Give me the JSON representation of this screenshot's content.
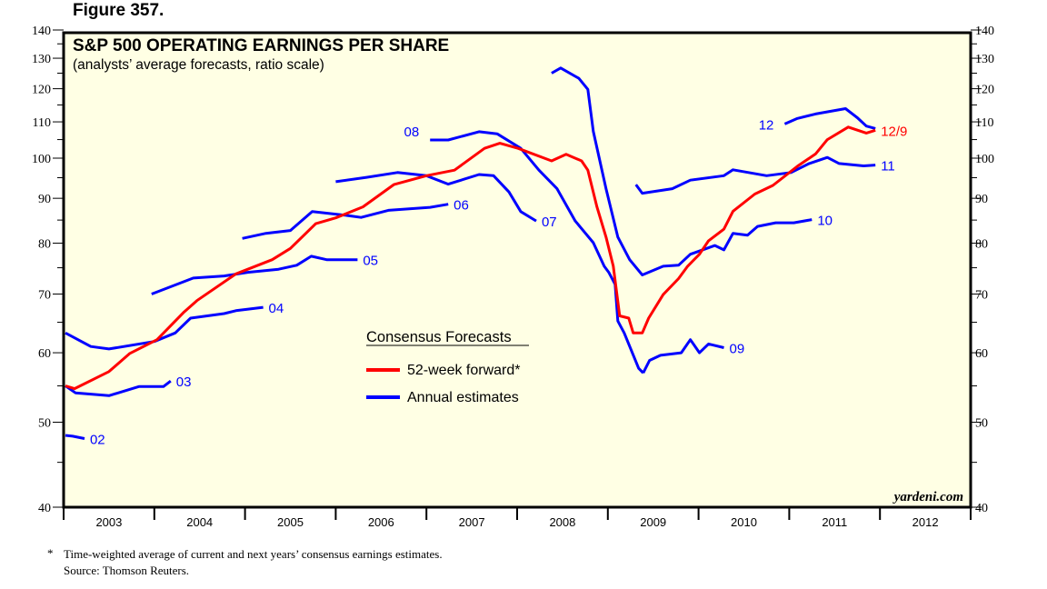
{
  "figure_label": "Figure 357.",
  "footnote": {
    "marker": "*",
    "text": "Time-weighted average of current and next years’ consensus earnings estimates.",
    "source": "Source: Thomson Reuters."
  },
  "watermark": "yardeni.com",
  "colors": {
    "forward": "#ff0000",
    "annual": "#0000ff",
    "background": "#ffffe4",
    "frame": "#000000"
  },
  "chart_data": {
    "type": "line",
    "title": "S&P 500 OPERATING EARNINGS PER SHARE",
    "subtitle": "(analysts’ average forecasts, ratio scale)",
    "y_scale": "log",
    "ylim": [
      40,
      140
    ],
    "y_ticks": [
      40,
      50,
      60,
      70,
      80,
      90,
      100,
      110,
      120,
      130,
      140
    ],
    "xlim": [
      2003,
      2013
    ],
    "x_tick_labels": [
      "2003",
      "2004",
      "2005",
      "2006",
      "2007",
      "2008",
      "2009",
      "2010",
      "2011",
      "2012"
    ],
    "grid": false,
    "legend": {
      "title": "Consensus Forecasts",
      "placement": "center-left",
      "entries": [
        {
          "label": "52-week forward*",
          "color": "#ff0000"
        },
        {
          "label": "Annual estimates",
          "color": "#0000ff"
        }
      ]
    },
    "series": [
      {
        "name": "52-week forward*",
        "label": "12/9",
        "color": "#ff0000",
        "points": [
          [
            2003.02,
            55.0
          ],
          [
            2003.12,
            54.6
          ],
          [
            2003.5,
            57.1
          ],
          [
            2003.73,
            59.9
          ],
          [
            2004.03,
            62.1
          ],
          [
            2004.33,
            66.8
          ],
          [
            2004.47,
            68.8
          ],
          [
            2004.9,
            73.8
          ],
          [
            2005.3,
            76.6
          ],
          [
            2005.5,
            78.9
          ],
          [
            2005.78,
            84.2
          ],
          [
            2006.0,
            85.5
          ],
          [
            2006.3,
            88.0
          ],
          [
            2006.64,
            93.3
          ],
          [
            2007.0,
            95.5
          ],
          [
            2007.31,
            96.9
          ],
          [
            2007.64,
            102.6
          ],
          [
            2007.81,
            104.0
          ],
          [
            2008.01,
            102.6
          ],
          [
            2008.38,
            99.3
          ],
          [
            2008.54,
            101.0
          ],
          [
            2008.71,
            99.3
          ],
          [
            2008.78,
            96.9
          ],
          [
            2008.88,
            88.0
          ],
          [
            2008.98,
            81.3
          ],
          [
            2009.06,
            75.3
          ],
          [
            2009.13,
            66.1
          ],
          [
            2009.23,
            65.7
          ],
          [
            2009.28,
            63.2
          ],
          [
            2009.38,
            63.2
          ],
          [
            2009.45,
            65.7
          ],
          [
            2009.61,
            69.9
          ],
          [
            2009.78,
            72.9
          ],
          [
            2009.88,
            75.3
          ],
          [
            2010.01,
            77.7
          ],
          [
            2010.11,
            80.5
          ],
          [
            2010.28,
            83.0
          ],
          [
            2010.38,
            87.0
          ],
          [
            2010.62,
            91.0
          ],
          [
            2010.82,
            93.1
          ],
          [
            2011.09,
            97.9
          ],
          [
            2011.29,
            101.1
          ],
          [
            2011.42,
            105.0
          ],
          [
            2011.65,
            108.5
          ],
          [
            2011.85,
            106.8
          ],
          [
            2011.95,
            107.6
          ]
        ]
      },
      {
        "label": "02",
        "color": "#0000ff",
        "points": [
          [
            2003.02,
            48.3
          ],
          [
            2003.1,
            48.2
          ],
          [
            2003.23,
            47.9
          ]
        ]
      },
      {
        "label": "03",
        "color": "#0000ff",
        "points": [
          [
            2003.02,
            55.0
          ],
          [
            2003.13,
            54.0
          ],
          [
            2003.5,
            53.6
          ],
          [
            2003.83,
            54.9
          ],
          [
            2004.1,
            54.9
          ],
          [
            2004.18,
            55.7
          ]
        ]
      },
      {
        "label": "04",
        "color": "#0000ff",
        "points": [
          [
            2003.02,
            63.2
          ],
          [
            2003.3,
            61.0
          ],
          [
            2003.5,
            60.6
          ],
          [
            2004.0,
            61.8
          ],
          [
            2004.23,
            63.2
          ],
          [
            2004.4,
            65.7
          ],
          [
            2004.77,
            66.5
          ],
          [
            2004.9,
            67.0
          ],
          [
            2005.2,
            67.6
          ]
        ]
      },
      {
        "label": "05",
        "color": "#0000ff",
        "points": [
          [
            2003.97,
            70.0
          ],
          [
            2004.43,
            73.0
          ],
          [
            2004.77,
            73.4
          ],
          [
            2005.03,
            74.1
          ],
          [
            2005.37,
            74.7
          ],
          [
            2005.57,
            75.5
          ],
          [
            2005.73,
            77.3
          ],
          [
            2005.9,
            76.6
          ],
          [
            2006.24,
            76.6
          ]
        ]
      },
      {
        "label": "06",
        "color": "#0000ff",
        "points": [
          [
            2004.97,
            81.0
          ],
          [
            2005.23,
            82.1
          ],
          [
            2005.5,
            82.7
          ],
          [
            2005.74,
            86.9
          ],
          [
            2006.1,
            86.1
          ],
          [
            2006.28,
            85.6
          ],
          [
            2006.58,
            87.2
          ],
          [
            2007.04,
            87.9
          ],
          [
            2007.24,
            88.6
          ]
        ]
      },
      {
        "label": "07",
        "color": "#0000ff",
        "points": [
          [
            2006.0,
            94.0
          ],
          [
            2006.34,
            95.1
          ],
          [
            2006.68,
            96.3
          ],
          [
            2007.0,
            95.5
          ],
          [
            2007.24,
            93.4
          ],
          [
            2007.58,
            95.8
          ],
          [
            2007.74,
            95.5
          ],
          [
            2007.91,
            91.5
          ],
          [
            2008.04,
            86.9
          ],
          [
            2008.21,
            84.8
          ]
        ]
      },
      {
        "label": "08",
        "color": "#0000ff",
        "points": [
          [
            2007.04,
            104.9
          ],
          [
            2007.24,
            104.9
          ],
          [
            2007.58,
            107.2
          ],
          [
            2007.78,
            106.6
          ],
          [
            2008.04,
            102.6
          ],
          [
            2008.24,
            96.9
          ],
          [
            2008.44,
            92.3
          ],
          [
            2008.64,
            84.8
          ],
          [
            2008.84,
            80.1
          ],
          [
            2008.96,
            75.3
          ],
          [
            2009.01,
            74.1
          ],
          [
            2009.08,
            71.8
          ],
          [
            2009.11,
            65.2
          ],
          [
            2009.18,
            63.2
          ],
          [
            2009.34,
            57.6
          ],
          [
            2009.39,
            56.9
          ]
        ]
      },
      {
        "label": "09",
        "color": "#0000ff",
        "points": [
          [
            2009.39,
            56.9
          ],
          [
            2009.46,
            58.8
          ],
          [
            2009.58,
            59.6
          ],
          [
            2009.81,
            60.0
          ],
          [
            2009.91,
            62.1
          ],
          [
            2010.01,
            60.0
          ],
          [
            2010.11,
            61.4
          ],
          [
            2010.28,
            60.8
          ]
        ]
      },
      {
        "label": "10",
        "color": "#0000ff",
        "points": [
          [
            2008.38,
            125.0
          ],
          [
            2008.48,
            126.7
          ],
          [
            2008.68,
            123.3
          ],
          [
            2008.78,
            119.8
          ],
          [
            2008.84,
            107.3
          ],
          [
            2008.98,
            92.3
          ],
          [
            2009.11,
            81.3
          ],
          [
            2009.24,
            76.6
          ],
          [
            2009.38,
            73.6
          ],
          [
            2009.61,
            75.3
          ],
          [
            2009.78,
            75.5
          ],
          [
            2009.91,
            77.7
          ],
          [
            2010.18,
            79.5
          ],
          [
            2010.28,
            78.6
          ],
          [
            2010.38,
            82.1
          ],
          [
            2010.54,
            81.7
          ],
          [
            2010.65,
            83.6
          ],
          [
            2010.85,
            84.4
          ],
          [
            2011.05,
            84.4
          ],
          [
            2011.25,
            85.1
          ]
        ]
      },
      {
        "label": "11",
        "color": "#0000ff",
        "points": [
          [
            2009.31,
            93.3
          ],
          [
            2009.38,
            91.2
          ],
          [
            2009.71,
            92.3
          ],
          [
            2009.91,
            94.4
          ],
          [
            2010.28,
            95.5
          ],
          [
            2010.38,
            97.0
          ],
          [
            2010.75,
            95.5
          ],
          [
            2011.02,
            96.3
          ],
          [
            2011.22,
            98.6
          ],
          [
            2011.42,
            100.2
          ],
          [
            2011.55,
            98.6
          ],
          [
            2011.82,
            98.0
          ],
          [
            2011.95,
            98.2
          ]
        ]
      },
      {
        "label": "12",
        "color": "#0000ff",
        "points": [
          [
            2010.95,
            109.4
          ],
          [
            2011.09,
            111.0
          ],
          [
            2011.29,
            112.3
          ],
          [
            2011.62,
            113.9
          ],
          [
            2011.75,
            111.2
          ],
          [
            2011.85,
            108.8
          ],
          [
            2011.95,
            108.1
          ]
        ]
      }
    ]
  }
}
